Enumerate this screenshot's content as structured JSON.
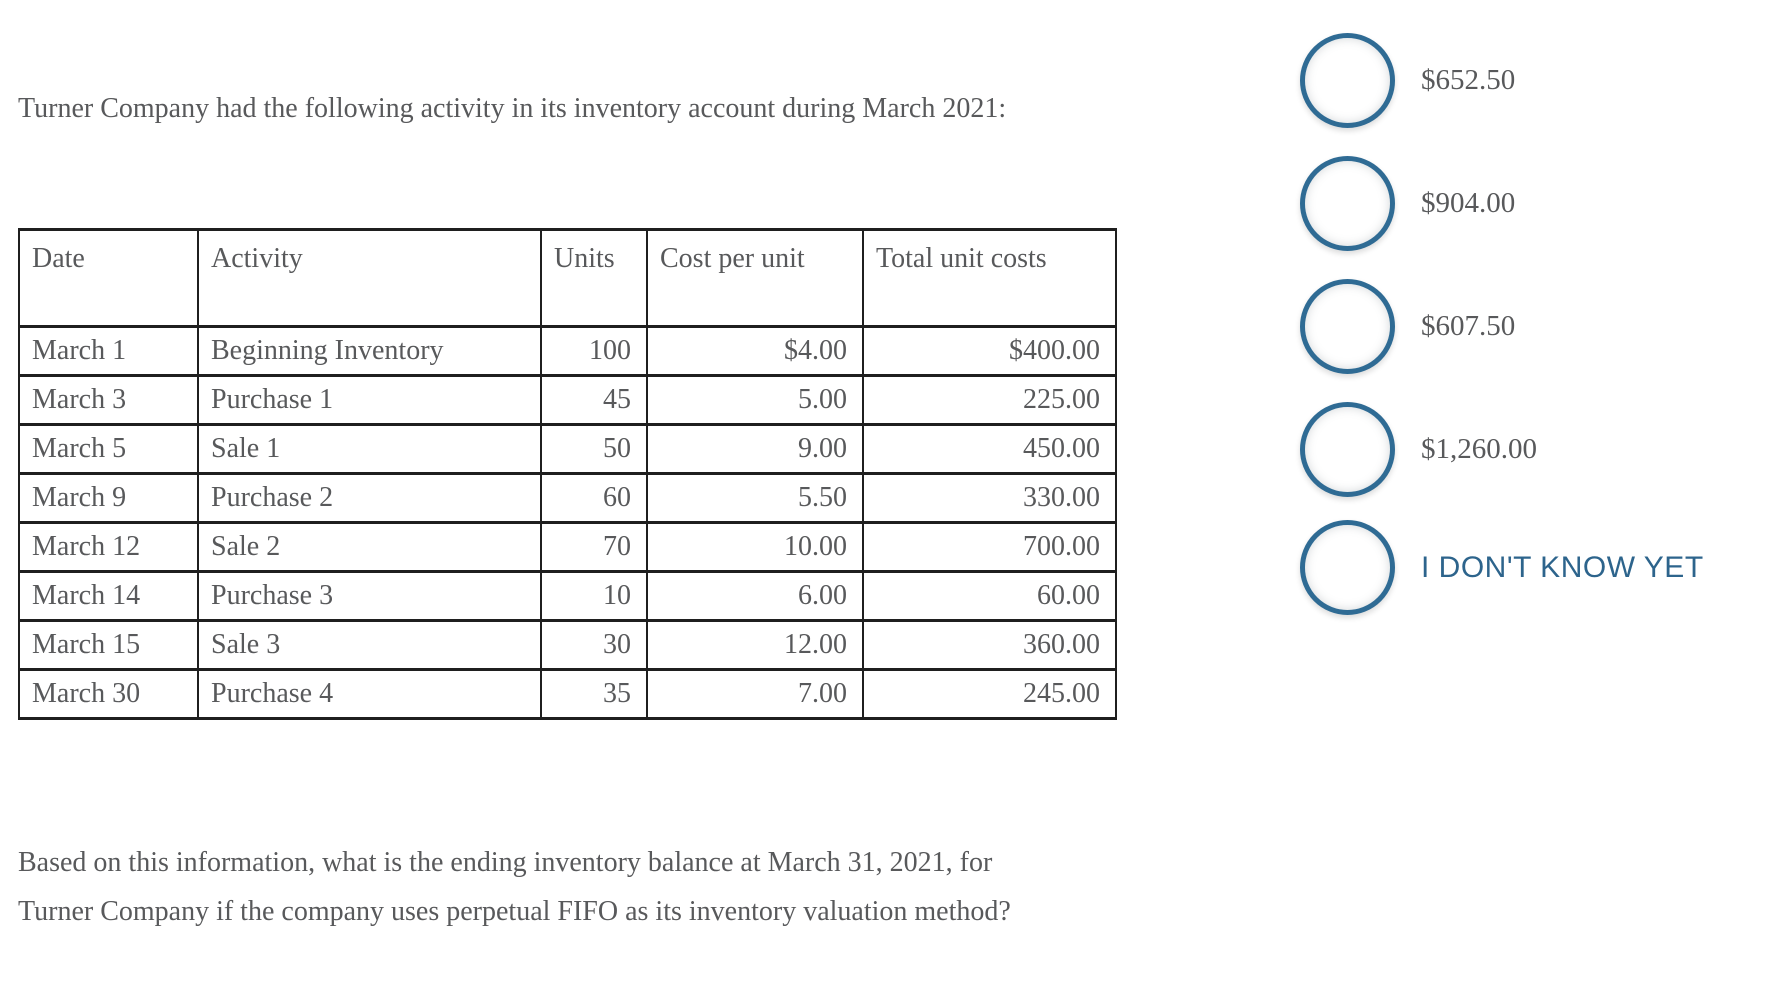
{
  "question": {
    "intro": "Turner Company had the following activity in its inventory account during March 2021:",
    "prompt": "Based on this information, what is the ending inventory balance at March 31, 2021, for Turner Company if the company uses perpetual FIFO as its inventory valuation method?"
  },
  "inventory_table": {
    "headers": [
      "Date",
      "Activity",
      "Units",
      "Cost per unit",
      "Total unit costs"
    ],
    "rows": [
      [
        "March 1",
        "Beginning Inventory",
        "100",
        "$4.00",
        "$400.00"
      ],
      [
        "March 3",
        "Purchase 1",
        "45",
        "5.00",
        "225.00"
      ],
      [
        "March 5",
        "Sale 1",
        "50",
        "9.00",
        "450.00"
      ],
      [
        "March 9",
        "Purchase 2",
        "60",
        "5.50",
        "330.00"
      ],
      [
        "March 12",
        "Sale 2",
        "70",
        "10.00",
        "700.00"
      ],
      [
        "March 14",
        "Purchase 3",
        "10",
        "6.00",
        "60.00"
      ],
      [
        "March 15",
        "Sale 3",
        "30",
        "12.00",
        "360.00"
      ],
      [
        "March 30",
        "Purchase 4",
        "35",
        "7.00",
        "245.00"
      ]
    ]
  },
  "answer_options": [
    {
      "label": "$652.50",
      "style": "amount"
    },
    {
      "label": "$904.00",
      "style": "amount"
    },
    {
      "label": "$607.50",
      "style": "amount"
    },
    {
      "label": "$1,260.00",
      "style": "amount"
    },
    {
      "label": "I DON'T KNOW YET",
      "style": "dont-know"
    }
  ],
  "colors": {
    "body_text": "#58595b",
    "table_border": "#1f1f1f",
    "radio_border": "#2f6b94",
    "dont_know_text": "#2d648c",
    "background": "#ffffff"
  }
}
